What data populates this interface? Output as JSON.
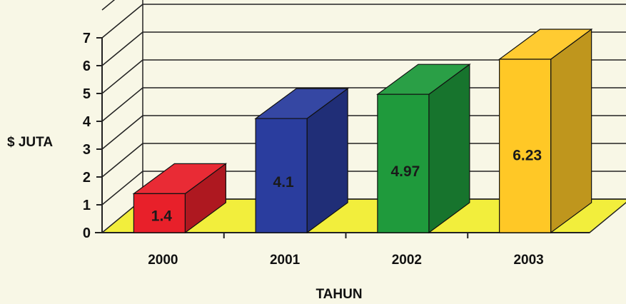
{
  "chart_data": {
    "type": "bar",
    "title": "",
    "xlabel": "TAHUN",
    "ylabel": "$ JUTA",
    "categories": [
      "2000",
      "2001",
      "2002",
      "2003"
    ],
    "values": [
      1.4,
      4.1,
      4.97,
      6.23
    ],
    "data_labels": [
      "1.4",
      "4.1",
      "4.97",
      "6.23"
    ],
    "ylim": [
      0,
      7
    ],
    "yticks": [
      "0",
      "1",
      "2",
      "3",
      "4",
      "5",
      "6",
      "7"
    ],
    "grid": true,
    "three_d": true,
    "colors": {
      "bars": [
        "#e8202a",
        "#2a3d9e",
        "#1f9a3c",
        "#ffc826"
      ],
      "floor": "#f2ee3c",
      "grid": "#222222",
      "background": "#f8f7e6"
    }
  }
}
